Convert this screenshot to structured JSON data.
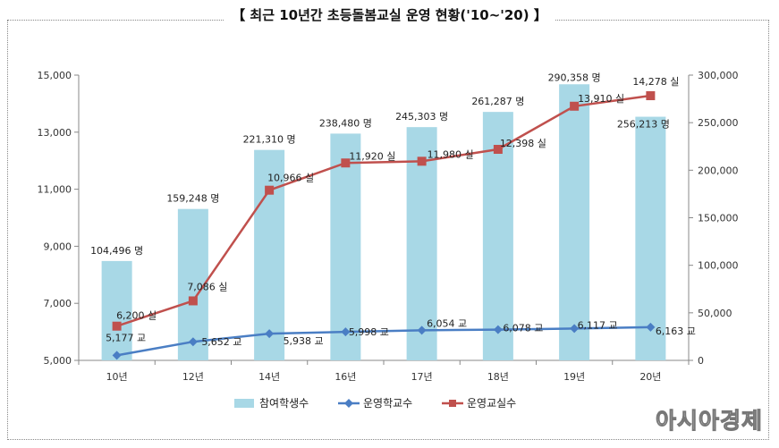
{
  "chart_data": {
    "type": "bar",
    "title": "【 최근 10년간 초등돌봄교실 운영 현황('10~'20) 】",
    "categories": [
      "10년",
      "12년",
      "14년",
      "16년",
      "17년",
      "18년",
      "19년",
      "20년"
    ],
    "left_axis": {
      "ylim": [
        5000,
        15000
      ],
      "ticks": [
        "5,000",
        "7,000",
        "9,000",
        "11,000",
        "13,000",
        "15,000"
      ]
    },
    "right_axis": {
      "ylim": [
        0,
        300000
      ],
      "ticks": [
        "0",
        "50,000",
        "100,000",
        "150,000",
        "200,000",
        "250,000",
        "300,000"
      ]
    },
    "series": [
      {
        "name": "참여학생수",
        "kind": "bar",
        "axis": "right",
        "color": "#a8d8e6",
        "values": [
          104496,
          159248,
          221310,
          238480,
          245303,
          261287,
          290358,
          256213
        ],
        "labels": [
          "104,496 명",
          "159,248 명",
          "221,310 명",
          "238,480 명",
          "245,303 명",
          "261,287 명",
          "290,358 명",
          "256,213 명"
        ]
      },
      {
        "name": "운영학교수",
        "kind": "line",
        "axis": "left",
        "color": "#4a7ec4",
        "marker": "diamond",
        "values": [
          5177,
          5652,
          5938,
          5998,
          6054,
          6078,
          6117,
          6163
        ],
        "labels": [
          "5,177 교",
          "5,652 교",
          "5,938 교",
          "5,998 교",
          "6,054 교",
          "6,078 교",
          "6,117 교",
          "6,163 교"
        ]
      },
      {
        "name": "운영교실수",
        "kind": "line",
        "axis": "left",
        "color": "#c0504d",
        "marker": "square",
        "values": [
          6200,
          7086,
          10966,
          11920,
          11980,
          12398,
          13910,
          14278
        ],
        "labels": [
          "6,200 실",
          "7,086 실",
          "10,966 실",
          "11,920 실",
          "11,980 실",
          "12,398 실",
          "13,910 실",
          "14,278 실"
        ]
      }
    ],
    "legend_position": "bottom",
    "grid": false
  },
  "watermark": "아시아경제"
}
